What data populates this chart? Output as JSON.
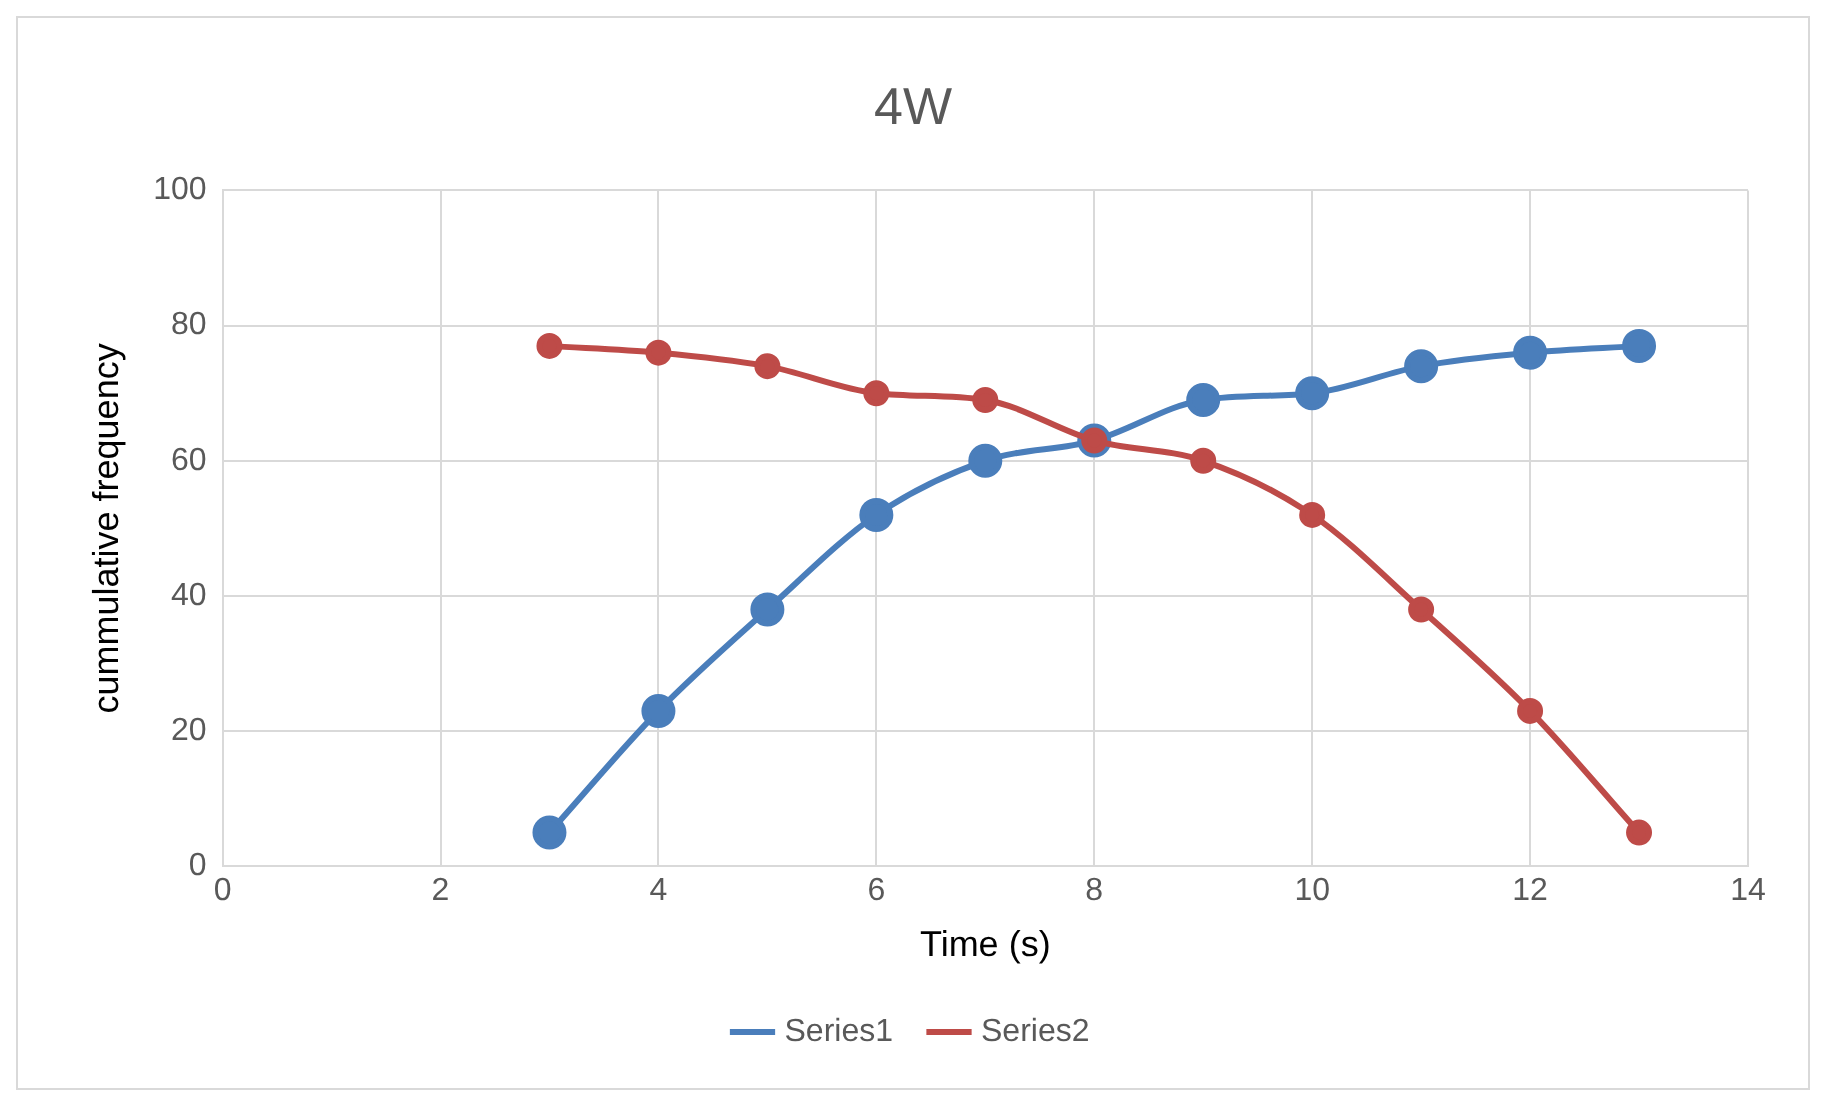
{
  "chart_data": {
    "type": "line",
    "title": "4W",
    "xlabel": "Time (s)",
    "ylabel": "cummulative frequency",
    "x": [
      3,
      4,
      5,
      6,
      7,
      8,
      9,
      10,
      11,
      12,
      13
    ],
    "series": [
      {
        "name": "Series1",
        "color": "#4a7ebb",
        "values": [
          5,
          23,
          38,
          52,
          60,
          63,
          69,
          70,
          74,
          76,
          77
        ]
      },
      {
        "name": "Series2",
        "color": "#be4b48",
        "values": [
          77,
          76,
          74,
          70,
          69,
          63,
          60,
          52,
          38,
          23,
          5
        ]
      }
    ],
    "xlim": [
      0,
      14
    ],
    "xticks": [
      0,
      2,
      4,
      6,
      8,
      10,
      12,
      14
    ],
    "ylim": [
      0,
      100
    ],
    "yticks": [
      0,
      20,
      40,
      60,
      80,
      100
    ],
    "grid": true,
    "legend": "bottom",
    "marker": "circle",
    "line_style": "solid"
  }
}
